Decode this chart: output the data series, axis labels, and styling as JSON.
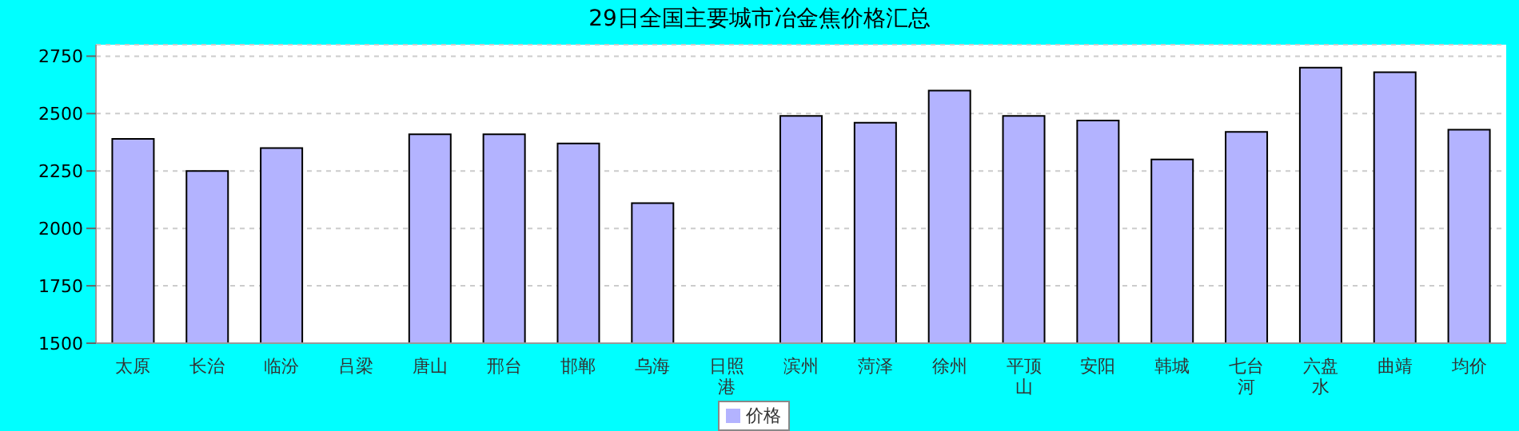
{
  "chart_data": {
    "type": "bar",
    "title": "29日全国主要城市冶金焦价格汇总",
    "categories": [
      "太原",
      "长治",
      "临汾",
      "吕梁",
      "唐山",
      "邢台",
      "邯郸",
      "乌海",
      "日照港",
      "滨州",
      "菏泽",
      "徐州",
      "平顶山",
      "安阳",
      "韩城",
      "七台河",
      "六盘水",
      "曲靖",
      "均价"
    ],
    "series": [
      {
        "name": "价格",
        "color": "#b3b3ff",
        "values": [
          2390,
          2250,
          2350,
          null,
          2410,
          2410,
          2370,
          2110,
          null,
          2490,
          2460,
          2600,
          2490,
          2470,
          2300,
          2420,
          2700,
          2680,
          2430
        ]
      }
    ],
    "ylim": [
      1500,
      2800
    ],
    "yticks": [
      1500,
      1750,
      2000,
      2250,
      2500,
      2750
    ],
    "grid": "y",
    "legend": "bottom"
  }
}
